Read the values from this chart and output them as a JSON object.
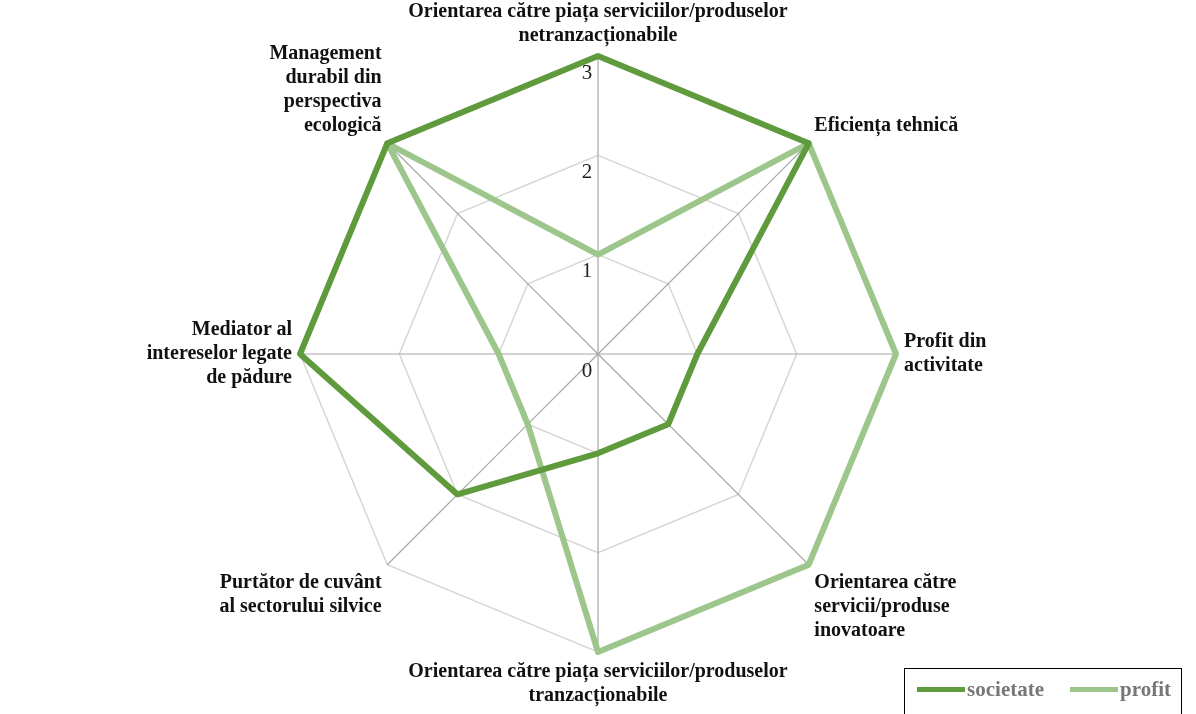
{
  "chart_data": {
    "type": "radar",
    "categories": [
      "Orientarea către piața serviciilor/produselor netranzacționabile",
      "Eficiența tehnică",
      "Profit din activitate",
      "Orientarea către servicii/produse inovatoare",
      "Orientarea către piața serviciilor/produselor tranzacționabile",
      "Purtător de cuvânt al sectorului silvice",
      "Mediator al intereselor legate de pădure",
      "Management durabil din perspectiva ecologică"
    ],
    "series": [
      {
        "name": "societate",
        "color": "#5f9a3d",
        "values": [
          3,
          3,
          1,
          1,
          1,
          2,
          3,
          3
        ]
      },
      {
        "name": "profit",
        "color": "#9dc68c",
        "values": [
          1,
          3,
          3,
          3,
          3,
          1,
          1,
          3
        ]
      }
    ],
    "ylim": [
      0,
      3
    ],
    "yticks": [
      0,
      1,
      2,
      3
    ],
    "grid": true,
    "legend": "bottom right",
    "marker": "none"
  }
}
